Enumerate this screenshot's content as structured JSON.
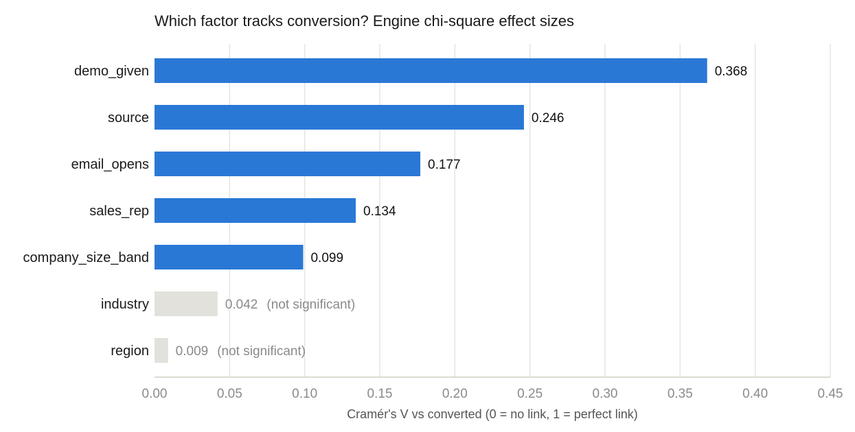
{
  "chart_data": {
    "type": "bar",
    "orientation": "horizontal",
    "title": "Which factor tracks conversion? Engine chi-square effect sizes",
    "xlabel": "Cramér's V vs converted (0 = no link, 1 = perfect link)",
    "ylabel": "",
    "xlim": [
      0,
      0.45
    ],
    "xticks": [
      "0.00",
      "0.05",
      "0.10",
      "0.15",
      "0.20",
      "0.25",
      "0.30",
      "0.35",
      "0.40",
      "0.45"
    ],
    "grid": "vertical",
    "legend": "none",
    "categories": [
      "demo_given",
      "source",
      "email_opens",
      "sales_rep",
      "company_size_band",
      "industry",
      "region"
    ],
    "values": [
      0.368,
      0.246,
      0.177,
      0.134,
      0.099,
      0.042,
      0.009
    ],
    "value_labels": [
      "0.368",
      "0.246",
      "0.177",
      "0.134",
      "0.099",
      "0.042",
      "0.009"
    ],
    "significant": [
      true,
      true,
      true,
      true,
      true,
      false,
      false
    ],
    "annotations": [
      "",
      "",
      "",
      "",
      "",
      "(not significant)",
      "(not significant)"
    ]
  },
  "colors": {
    "significant_bar": "#2a78d6",
    "not_significant_bar": "#e2e1dc",
    "significant_text": "#111111",
    "not_significant_text": "#8a8a8a",
    "grid": "#e6e5dc",
    "axis": "#cfcdc2"
  }
}
